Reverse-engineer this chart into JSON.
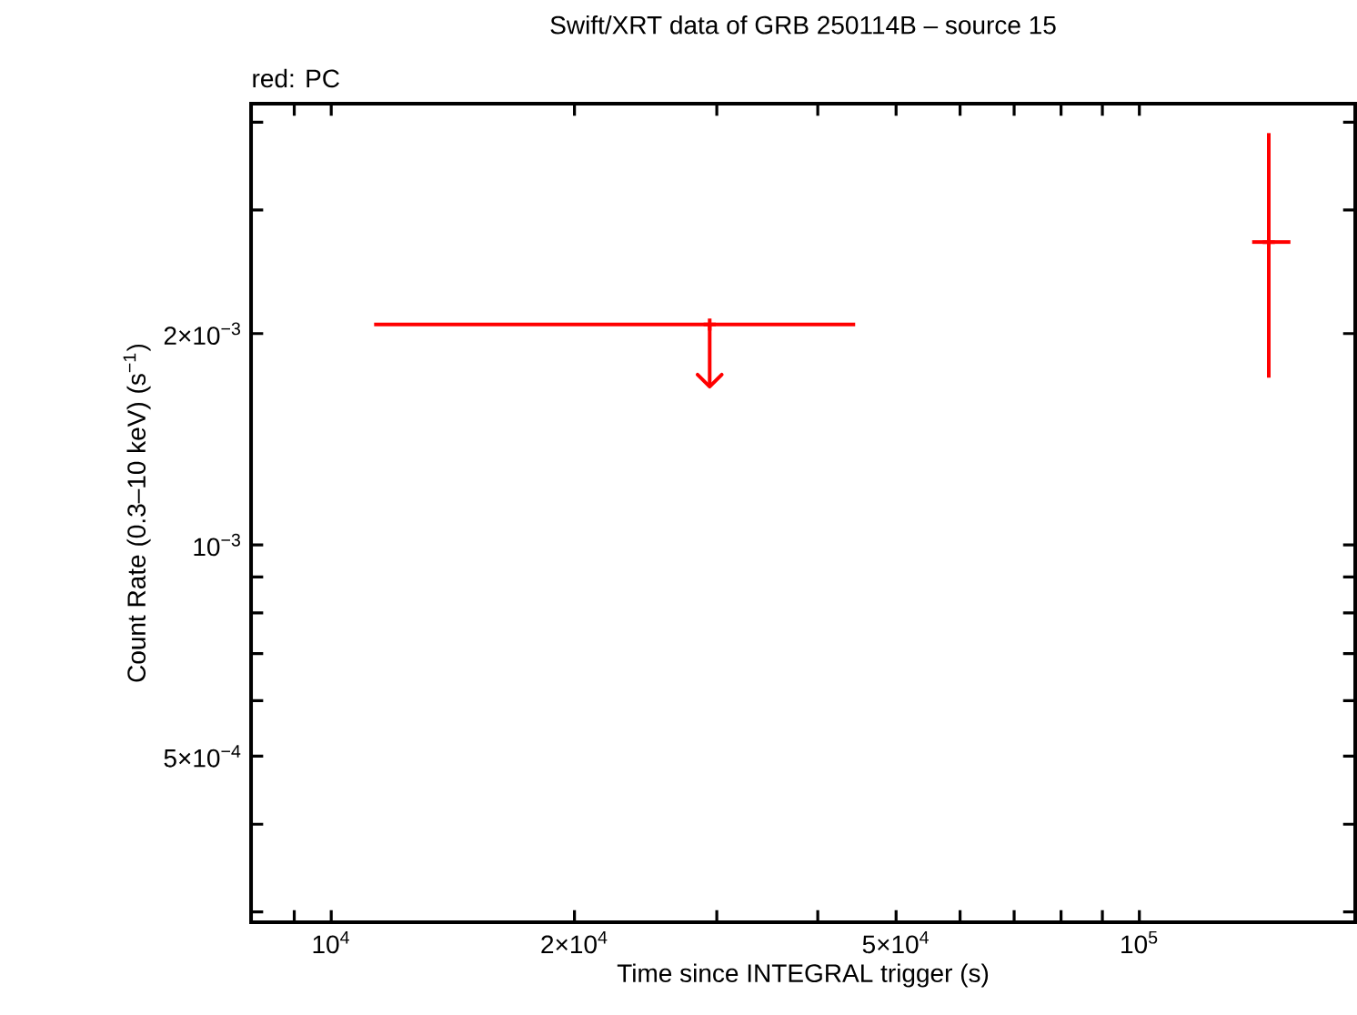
{
  "chart_data": {
    "type": "scatter",
    "title": "Swift/XRT data of GRB 250114B – source 15",
    "xlabel": "Time since INTEGRAL trigger (s)",
    "ylabel": "Count Rate (0.3–10 keV) (s$^{−1}$)",
    "annotations": [
      "red: PC"
    ],
    "log": "xy",
    "marker": "cross",
    "line_style": "solid",
    "xlim": [
      7960,
      185000
    ],
    "ylim": [
      0.00029,
      0.00425
    ],
    "xticks": [
      {
        "value": 9000,
        "label": null
      },
      {
        "value": 10000,
        "label": "10$^{4}$"
      },
      {
        "value": 20000,
        "label": "2×10$^{4}$"
      },
      {
        "value": 30000,
        "label": null
      },
      {
        "value": 40000,
        "label": null
      },
      {
        "value": 50000,
        "label": "5×10$^{4}$"
      },
      {
        "value": 60000,
        "label": null
      },
      {
        "value": 70000,
        "label": null
      },
      {
        "value": 80000,
        "label": null
      },
      {
        "value": 90000,
        "label": null
      },
      {
        "value": 100000,
        "label": "10$^{5}$"
      }
    ],
    "yticks": [
      {
        "value": 0.0003,
        "label": null
      },
      {
        "value": 0.0004,
        "label": null
      },
      {
        "value": 0.0005,
        "label": "5×10$^{−4}$"
      },
      {
        "value": 0.0006,
        "label": null
      },
      {
        "value": 0.0007,
        "label": null
      },
      {
        "value": 0.0008,
        "label": null
      },
      {
        "value": 0.0009,
        "label": null
      },
      {
        "value": 0.001,
        "label": "10$^{−3}$"
      },
      {
        "value": 0.002,
        "label": "2×10$^{−3}$"
      },
      {
        "value": 0.003,
        "label": null
      },
      {
        "value": 0.004,
        "label": null
      }
    ],
    "series": [
      {
        "color": "#ff0000",
        "x": [
          29400
        ],
        "values": [
          0.00206
        ],
        "xerrors": [
          [
            11300,
            44500
          ]
        ],
        "errors": [
          [
            0.00168,
            0.00206
          ]
        ]
      },
      {
        "color": "#ff0000",
        "x": [
          144600
        ],
        "values": [
          0.0027
        ],
        "xerrors": [
          [
            137900,
            153800
          ]
        ],
        "errors": [
          [
            0.00173,
            0.00386
          ]
        ]
      }
    ]
  }
}
